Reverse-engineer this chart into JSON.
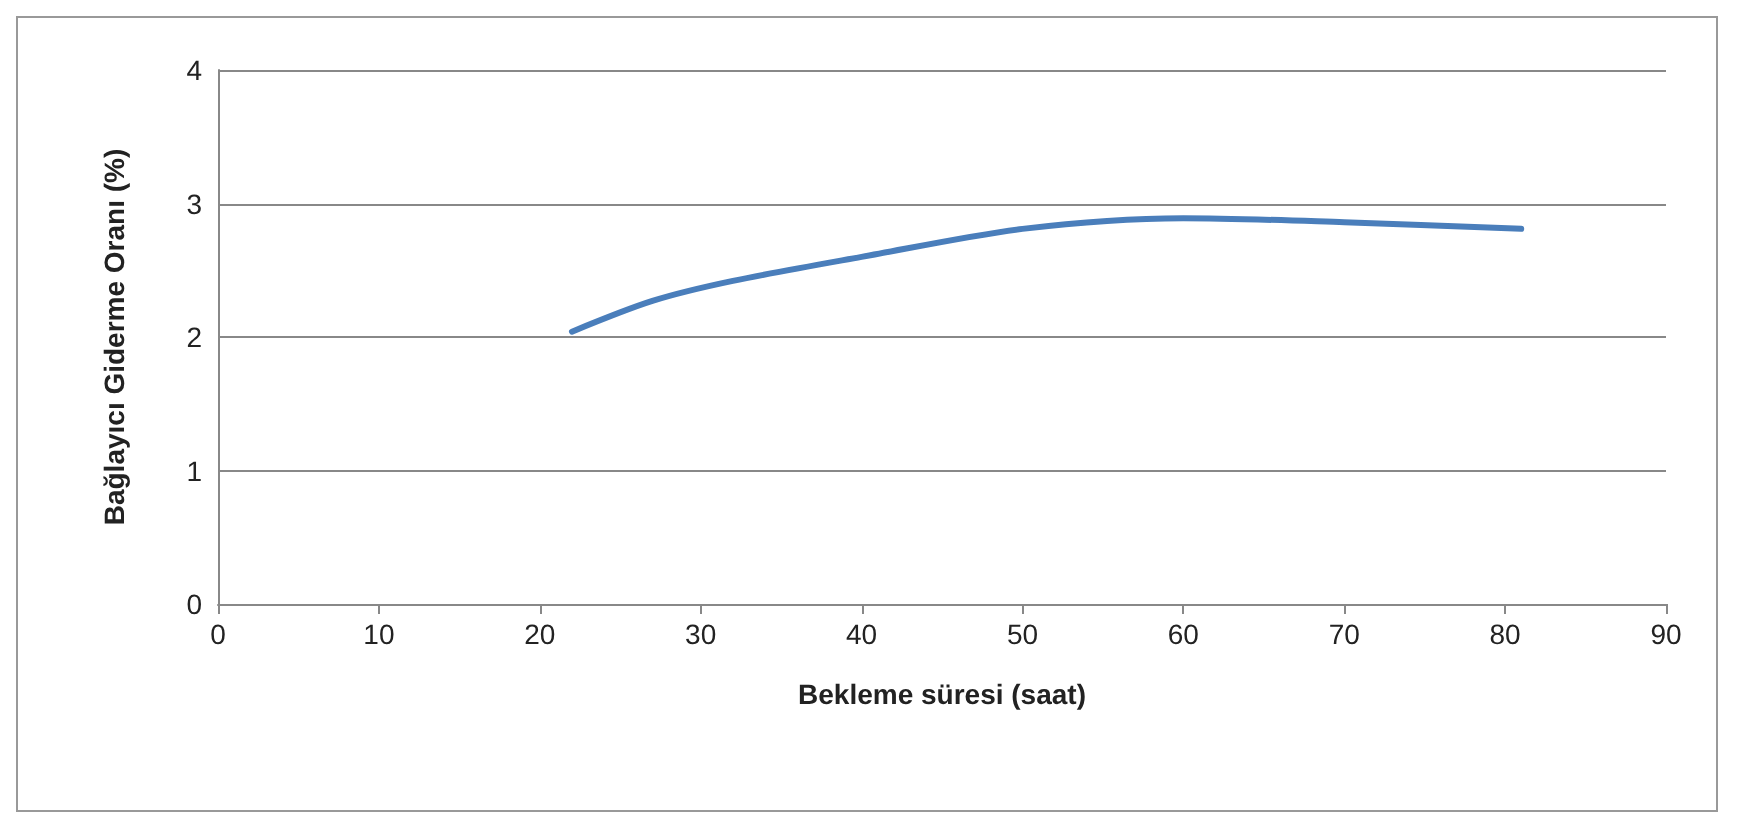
{
  "chart_data": {
    "type": "line",
    "xlabel": "Bekleme süresi (saat)",
    "ylabel": "Bağlayıcı Giderme Oranı (%)",
    "x": [
      22,
      27,
      32,
      40,
      50,
      60,
      70,
      81
    ],
    "series": [
      {
        "color": "#4a7ebb",
        "values": [
          2.04,
          2.27,
          2.42,
          2.6,
          2.81,
          2.89,
          2.86,
          2.81
        ]
      }
    ],
    "xlim": [
      0,
      90
    ],
    "xticks": [
      0,
      10,
      20,
      30,
      40,
      50,
      60,
      70,
      80,
      90
    ],
    "ylim": [
      0,
      4
    ],
    "yticks": [
      0,
      1,
      2,
      3,
      4
    ],
    "grid": "y",
    "marker": "none",
    "line_style": "solid"
  }
}
